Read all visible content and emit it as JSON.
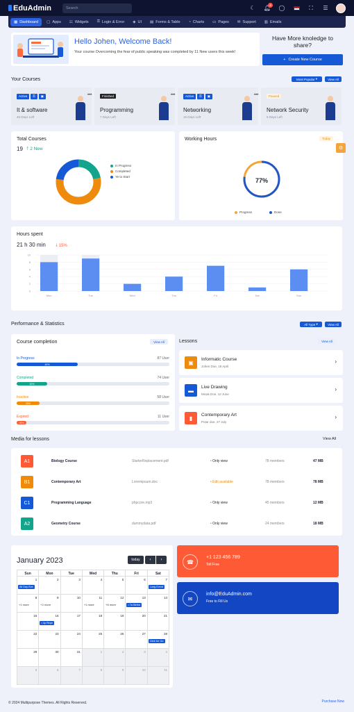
{
  "app": {
    "name": "EduAdmin",
    "search_placeholder": "Search"
  },
  "topbar": {
    "notifications": "4"
  },
  "nav": [
    {
      "label": "Dashboard",
      "icon": "▦"
    },
    {
      "label": "Apps",
      "icon": "▢"
    },
    {
      "label": "Widgets",
      "icon": "☷"
    },
    {
      "label": "Login & Error",
      "icon": "⚿"
    },
    {
      "label": "UI",
      "icon": "◈"
    },
    {
      "label": "Forms & Table",
      "icon": "▤"
    },
    {
      "label": "Charts",
      "icon": "◔"
    },
    {
      "label": "Pages",
      "icon": "▭"
    },
    {
      "label": "Support",
      "icon": "✉"
    },
    {
      "label": "Emails",
      "icon": "▥"
    }
  ],
  "welcome": {
    "title": "Hello Johen, Welcome Back!",
    "text": "Your course Overcoming the fear of public speaking was completed by 11 New users this week!"
  },
  "knowledge": {
    "text": "Have More knoledge to share?",
    "button": "Create New Course"
  },
  "your_courses": {
    "title": "Your Courses",
    "filter": "Most Popular",
    "view_all": "View All"
  },
  "courses": [
    {
      "badge": "Active",
      "badge_style": "blue",
      "name": "It & software",
      "days": "45 Days Left"
    },
    {
      "badge": "Finished",
      "badge_style": "dark",
      "name": "Programming",
      "days": "7 Days Left"
    },
    {
      "badge": "Active",
      "badge_style": "blue",
      "name": "Networking",
      "days": "15 Days Left"
    },
    {
      "badge": "Paused",
      "badge_style": "orange",
      "name": "Network Security",
      "days": "5 Days Left"
    }
  ],
  "total_courses": {
    "title": "Total Courses",
    "count": "19",
    "new": "2 New",
    "legend": [
      "In Progress",
      "Completed",
      "Ye to Start"
    ],
    "colors": [
      "#12a58b",
      "#ef8b0c",
      "#1559d6"
    ],
    "values": [
      22,
      55,
      23
    ]
  },
  "working_hours": {
    "title": "Working Hours",
    "filter": "Today",
    "percent": "77%",
    "value": 77,
    "legend": [
      "Progress",
      "Done"
    ]
  },
  "hours_spent": {
    "title": "Hours spent",
    "total": "21 h 30 min",
    "change": "15%"
  },
  "chart_data": {
    "type": "bar",
    "categories": [
      "Mon",
      "Tue",
      "Wed",
      "Thu",
      "Fri",
      "Sat",
      "Sun"
    ],
    "values": [
      8,
      9,
      2,
      4,
      7,
      1,
      6
    ],
    "background": [
      10,
      10,
      null,
      null,
      null,
      null,
      null
    ],
    "yticks": [
      "0",
      "2",
      "4",
      "6",
      "8",
      "10"
    ],
    "ylim": [
      0,
      10
    ]
  },
  "performance": {
    "title": "Performance & Statistics",
    "filter": "All Type",
    "view_all": "View All"
  },
  "completion": {
    "title": "Course completion",
    "view_all": "View All",
    "items": [
      {
        "label": "In Progress",
        "users": "87 User",
        "pct": "40%",
        "value": 0.4,
        "color": "#1559d6"
      },
      {
        "label": "Completed",
        "users": "74 User",
        "pct": "20%",
        "value": 0.2,
        "color": "#12a58b"
      },
      {
        "label": "Inactive",
        "users": "58 User",
        "pct": "15%",
        "value": 0.15,
        "color": "#ef8b0c"
      },
      {
        "label": "Expired",
        "users": "11 User",
        "pct": "05%",
        "value": 0.05,
        "color": "#ff5a36"
      }
    ]
  },
  "lessons": {
    "title": "Lessons",
    "view_all": "View All",
    "items": [
      {
        "title": "Informatic Course",
        "sub": "Johen Doe, 19 April",
        "color": "#ef8b0c",
        "icon": "▣"
      },
      {
        "title": "Live Drawing",
        "sub": "Micak Doe, 12 June",
        "color": "#1559d6",
        "icon": "▬"
      },
      {
        "title": "Contemporary Art",
        "sub": "Potar doe, 27 July",
        "color": "#ff5a36",
        "icon": "▮"
      }
    ]
  },
  "media": {
    "title": "Media for lessons",
    "view_all": "View All",
    "rows": [
      {
        "code": "A1",
        "color": "#ff5a36",
        "course": "Biology Course",
        "file": "StarterReplacement.pdf",
        "access": "Only view",
        "access_color": "#222",
        "dot": "#ff5a36",
        "members": "78 members",
        "size": "47 MB"
      },
      {
        "code": "B1",
        "color": "#ef8b0c",
        "course": "Contemporary Art",
        "file": "Loremipsum.doc",
        "access": "Edit available",
        "access_color": "#ef8b0c",
        "dot": "#ef8b0c",
        "members": "78 members",
        "size": "78 MB"
      },
      {
        "code": "C1",
        "color": "#1559d6",
        "course": "Programming Language",
        "file": "phpcore.mp3",
        "access": "Only view",
        "access_color": "#222",
        "dot": "#ff5a36",
        "members": "45 members",
        "size": "12 MB"
      },
      {
        "code": "A2",
        "color": "#12a58b",
        "course": "Geometry Course",
        "file": "dummydata.pdf",
        "access": "Only view",
        "access_color": "#222",
        "dot": "#ff5a36",
        "members": "24 members",
        "size": "18 MB"
      }
    ]
  },
  "calendar": {
    "month": "January 2023",
    "today": "today",
    "days": [
      "Sun",
      "Mon",
      "Tue",
      "Wed",
      "Thu",
      "Fri",
      "Sat"
    ],
    "cells": [
      {
        "n": "1",
        "ev": "All Day Eve"
      },
      {
        "n": "2"
      },
      {
        "n": "3"
      },
      {
        "n": "4"
      },
      {
        "n": "5"
      },
      {
        "n": "6"
      },
      {
        "n": "7",
        "ev": "Long Event"
      },
      {
        "n": "8",
        "more": "+1 more"
      },
      {
        "n": "9",
        "more": "+2 more"
      },
      {
        "n": "10"
      },
      {
        "n": "11",
        "more": "+1 more"
      },
      {
        "n": "12",
        "more": "+6 more"
      },
      {
        "n": "13",
        "ev": "• 7a Birthd"
      },
      {
        "n": "14"
      },
      {
        "n": "15"
      },
      {
        "n": "16",
        "ev": "• 4p Repe"
      },
      {
        "n": "17"
      },
      {
        "n": "18"
      },
      {
        "n": "19"
      },
      {
        "n": "20"
      },
      {
        "n": "21"
      },
      {
        "n": "22"
      },
      {
        "n": "23"
      },
      {
        "n": "24"
      },
      {
        "n": "25"
      },
      {
        "n": "26"
      },
      {
        "n": "27"
      },
      {
        "n": "28",
        "ev": "Click for Go"
      },
      {
        "n": "29"
      },
      {
        "n": "30"
      },
      {
        "n": "31"
      },
      {
        "n": "1",
        "m": true
      },
      {
        "n": "2",
        "m": true
      },
      {
        "n": "3",
        "m": true
      },
      {
        "n": "4",
        "m": true
      },
      {
        "n": "5",
        "m": true
      },
      {
        "n": "6",
        "m": true
      },
      {
        "n": "7",
        "m": true
      },
      {
        "n": "8",
        "m": true
      },
      {
        "n": "9",
        "m": true
      },
      {
        "n": "10",
        "m": true
      },
      {
        "n": "11",
        "m": true
      }
    ]
  },
  "contacts": [
    {
      "line1": "+1 123 456 789",
      "line2": "Toll Free",
      "color": "#ff5a36",
      "icon": "☎"
    },
    {
      "line1": "info@EduAdmin.com",
      "line2": "Free to Fill Us",
      "color": "#1246c2",
      "icon": "✉"
    }
  ],
  "footer": {
    "copyright": "© 2024 Multipurpose Themes. All Rights Reserved.",
    "link": "Purchase Now"
  }
}
